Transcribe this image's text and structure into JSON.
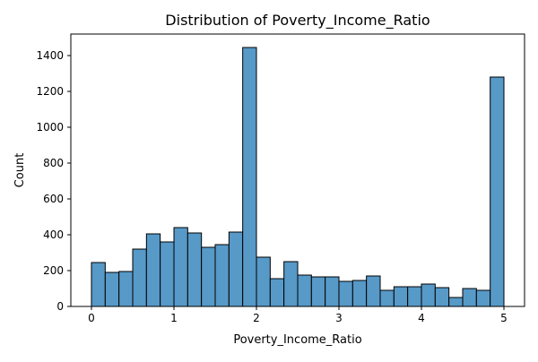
{
  "chart_data": {
    "type": "bar",
    "title": "Distribution of Poverty_Income_Ratio",
    "xlabel": "Poverty_Income_Ratio",
    "ylabel": "Count",
    "xlim": [
      -0.25,
      5.25
    ],
    "ylim": [
      0,
      1520
    ],
    "bin_width": 0.1667,
    "bins": [
      {
        "x0": 0.0,
        "x1": 0.1667,
        "value": 245
      },
      {
        "x0": 0.1667,
        "x1": 0.3333,
        "value": 190
      },
      {
        "x0": 0.3333,
        "x1": 0.5,
        "value": 195
      },
      {
        "x0": 0.5,
        "x1": 0.6667,
        "value": 320
      },
      {
        "x0": 0.6667,
        "x1": 0.8333,
        "value": 405
      },
      {
        "x0": 0.8333,
        "x1": 1.0,
        "value": 360
      },
      {
        "x0": 1.0,
        "x1": 1.1667,
        "value": 440
      },
      {
        "x0": 1.1667,
        "x1": 1.3333,
        "value": 410
      },
      {
        "x0": 1.3333,
        "x1": 1.5,
        "value": 330
      },
      {
        "x0": 1.5,
        "x1": 1.6667,
        "value": 345
      },
      {
        "x0": 1.6667,
        "x1": 1.8333,
        "value": 415
      },
      {
        "x0": 1.8333,
        "x1": 2.0,
        "value": 1445
      },
      {
        "x0": 2.0,
        "x1": 2.1667,
        "value": 275
      },
      {
        "x0": 2.1667,
        "x1": 2.3333,
        "value": 155
      },
      {
        "x0": 2.3333,
        "x1": 2.5,
        "value": 250
      },
      {
        "x0": 2.5,
        "x1": 2.6667,
        "value": 175
      },
      {
        "x0": 2.6667,
        "x1": 2.8333,
        "value": 165
      },
      {
        "x0": 2.8333,
        "x1": 3.0,
        "value": 165
      },
      {
        "x0": 3.0,
        "x1": 3.1667,
        "value": 140
      },
      {
        "x0": 3.1667,
        "x1": 3.3333,
        "value": 145
      },
      {
        "x0": 3.3333,
        "x1": 3.5,
        "value": 170
      },
      {
        "x0": 3.5,
        "x1": 3.6667,
        "value": 90
      },
      {
        "x0": 3.6667,
        "x1": 3.8333,
        "value": 110
      },
      {
        "x0": 3.8333,
        "x1": 4.0,
        "value": 110
      },
      {
        "x0": 4.0,
        "x1": 4.1667,
        "value": 125
      },
      {
        "x0": 4.1667,
        "x1": 4.3333,
        "value": 105
      },
      {
        "x0": 4.3333,
        "x1": 4.5,
        "value": 50
      },
      {
        "x0": 4.5,
        "x1": 4.6667,
        "value": 100
      },
      {
        "x0": 4.6667,
        "x1": 4.8333,
        "value": 90
      },
      {
        "x0": 4.8333,
        "x1": 5.0,
        "value": 1280
      }
    ],
    "x_ticks": [
      {
        "value": 0,
        "label": "0"
      },
      {
        "value": 1,
        "label": "1"
      },
      {
        "value": 2,
        "label": "2"
      },
      {
        "value": 3,
        "label": "3"
      },
      {
        "value": 4,
        "label": "4"
      },
      {
        "value": 5,
        "label": "5"
      }
    ],
    "y_ticks": [
      {
        "value": 0,
        "label": "0"
      },
      {
        "value": 200,
        "label": "200"
      },
      {
        "value": 400,
        "label": "400"
      },
      {
        "value": 600,
        "label": "600"
      },
      {
        "value": 800,
        "label": "800"
      },
      {
        "value": 1000,
        "label": "1000"
      },
      {
        "value": 1200,
        "label": "1200"
      },
      {
        "value": 1400,
        "label": "1400"
      }
    ],
    "grid": false,
    "legend": "none",
    "colors": {
      "bar_fill": "#5799c7",
      "bar_edge": "#000000",
      "axes": "#000000",
      "background": "#ffffff"
    }
  }
}
